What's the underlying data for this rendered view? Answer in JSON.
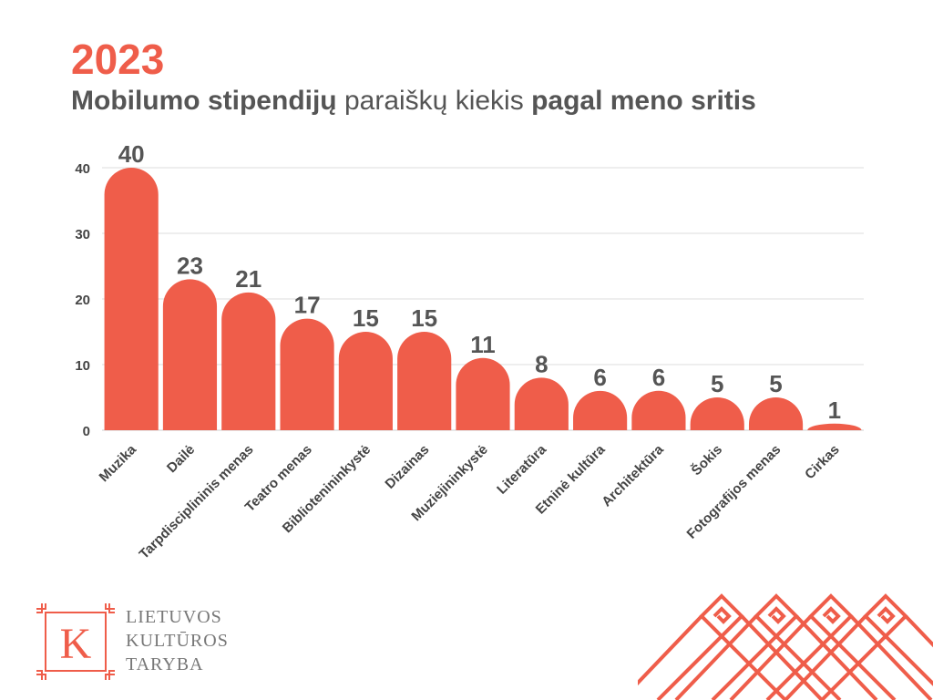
{
  "header": {
    "year": "2023",
    "subtitle_bold_1": "Mobilumo stipendijų",
    "subtitle_regular": " paraiškų kiekis ",
    "subtitle_bold_2": "pagal meno sritis"
  },
  "chart_data": {
    "type": "bar",
    "categories": [
      "Muzika",
      "Dailė",
      "Tarpdisciplininis menas",
      "Teatro menas",
      "Bibliotenininkystė",
      "Dizainas",
      "Muziejininkystė",
      "Literatūra",
      "Etninė kultūra",
      "Architektūra",
      "Šokis",
      "Fotografijos menas",
      "Cirkas"
    ],
    "values": [
      40,
      23,
      21,
      17,
      15,
      15,
      11,
      8,
      6,
      6,
      5,
      5,
      1
    ],
    "title": "",
    "xlabel": "",
    "ylabel": "",
    "ylim": [
      0,
      40
    ],
    "yticks": [
      0,
      10,
      20,
      30,
      40
    ],
    "grid": true,
    "bar_color": "#ef5d4a",
    "data_labels": true
  },
  "logo": {
    "letter": "K",
    "line1": "LIETUVOS",
    "line2": "KULTŪROS",
    "line3": "TARYBA",
    "color": "#ef5d4a"
  },
  "ornament": {
    "name": "lithuanian-pattern-ornament",
    "color": "#ef5d4a"
  }
}
